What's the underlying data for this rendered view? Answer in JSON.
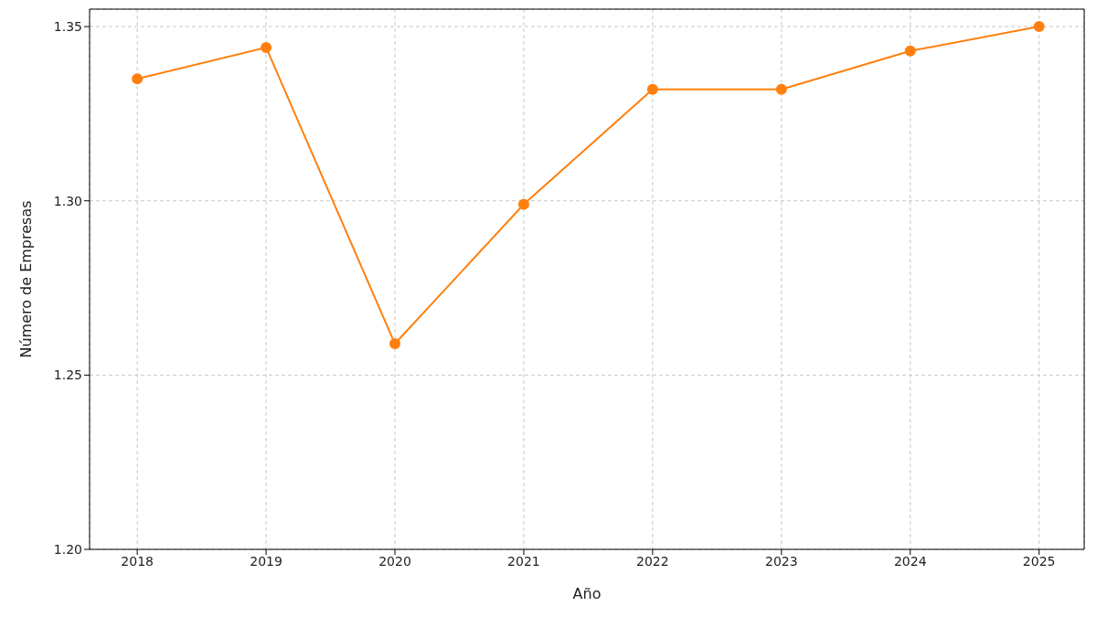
{
  "chart_data": {
    "type": "line",
    "xlabel": "Año",
    "ylabel": "Número de Empresas",
    "x": [
      2018,
      2019,
      2020,
      2021,
      2022,
      2023,
      2024,
      2025
    ],
    "series": [
      {
        "color": "#ff7f0e",
        "values": [
          1.335,
          1.344,
          1.259,
          1.299,
          1.332,
          1.332,
          1.343,
          1.35
        ]
      }
    ],
    "xlim": [
      2017.63,
      2025.35
    ],
    "xticks": [
      2018,
      2019,
      2020,
      2021,
      2022,
      2023,
      2024,
      2025
    ],
    "ylim": [
      1.2,
      1.355
    ],
    "yticks": [
      {
        "value": 1.2,
        "label": "1.20"
      },
      {
        "value": 1.25,
        "label": "1.25"
      },
      {
        "value": 1.3,
        "label": "1.30"
      },
      {
        "value": 1.35,
        "label": "1.35"
      }
    ],
    "grid": true,
    "marker": "circle",
    "line_style": "solid",
    "legend": false
  }
}
